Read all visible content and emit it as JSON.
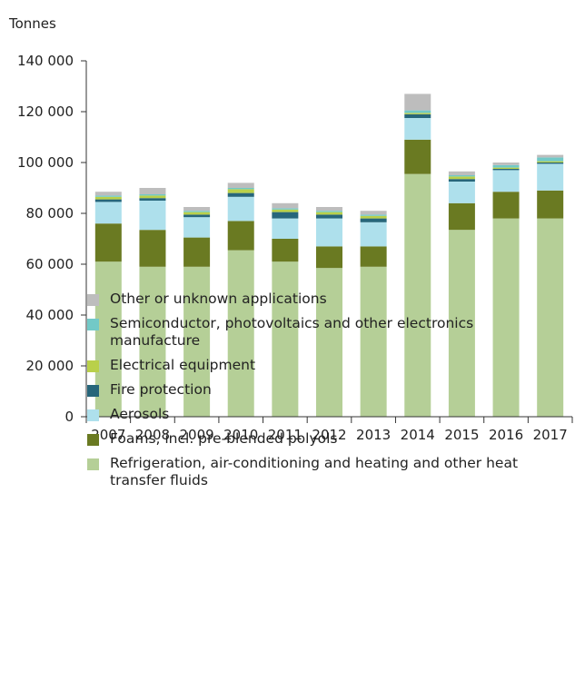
{
  "chart_data": {
    "type": "bar",
    "stacked": true,
    "unit_label": "Tonnes",
    "categories": [
      "2007",
      "2008",
      "2009",
      "2010",
      "2011",
      "2012",
      "2013",
      "2014",
      "2015",
      "2016",
      "2017"
    ],
    "y_ticks": [
      "0",
      "20 000",
      "40 000",
      "60 000",
      "80 000",
      "100 000",
      "120 000",
      "140 000"
    ],
    "ylim": [
      0,
      140000
    ],
    "grid": false,
    "legend_position": "bottom",
    "series": [
      {
        "name": "Refrigeration, air-conditioning and heating and other heat transfer fluids",
        "color": "#b5cf97",
        "values": [
          61000,
          59000,
          59000,
          65500,
          61000,
          58500,
          59000,
          95500,
          73500,
          78000,
          78000
        ]
      },
      {
        "name": "Foams, incl. pre-blended polyols",
        "color": "#6a7a22",
        "values": [
          15000,
          14500,
          11500,
          11500,
          9000,
          8500,
          8000,
          13500,
          10500,
          10500,
          11000
        ]
      },
      {
        "name": "Aerosols",
        "color": "#aee0ec",
        "values": [
          8500,
          11500,
          8000,
          9500,
          8000,
          11000,
          9500,
          8500,
          8500,
          8500,
          10500
        ]
      },
      {
        "name": "Fire protection",
        "color": "#27667a",
        "values": [
          1000,
          1000,
          1000,
          1500,
          2500,
          1500,
          1500,
          1500,
          1000,
          500,
          500
        ]
      },
      {
        "name": "Electrical equipment",
        "color": "#b9d04a",
        "values": [
          1000,
          1000,
          1000,
          1500,
          1000,
          1000,
          1000,
          500,
          1000,
          500,
          500
        ]
      },
      {
        "name": "Semiconductor, photovoltaics and other electronics manufacture",
        "color": "#72c9c7",
        "values": [
          500,
          500,
          500,
          500,
          500,
          500,
          500,
          1000,
          500,
          1000,
          1500
        ]
      },
      {
        "name": "Other or unknown applications",
        "color": "#bdbdbd",
        "values": [
          1500,
          2500,
          1500,
          2000,
          2000,
          1500,
          1500,
          6500,
          1500,
          1000,
          1000
        ]
      }
    ],
    "legend_order": [
      "Other or unknown applications",
      "Semiconductor, photovoltaics and other electronics manufacture",
      "Electrical equipment",
      "Fire protection",
      "Aerosols",
      "Foams, incl. pre-blended polyols",
      "Refrigeration, air-conditioning and heating and other heat transfer fluids"
    ]
  }
}
